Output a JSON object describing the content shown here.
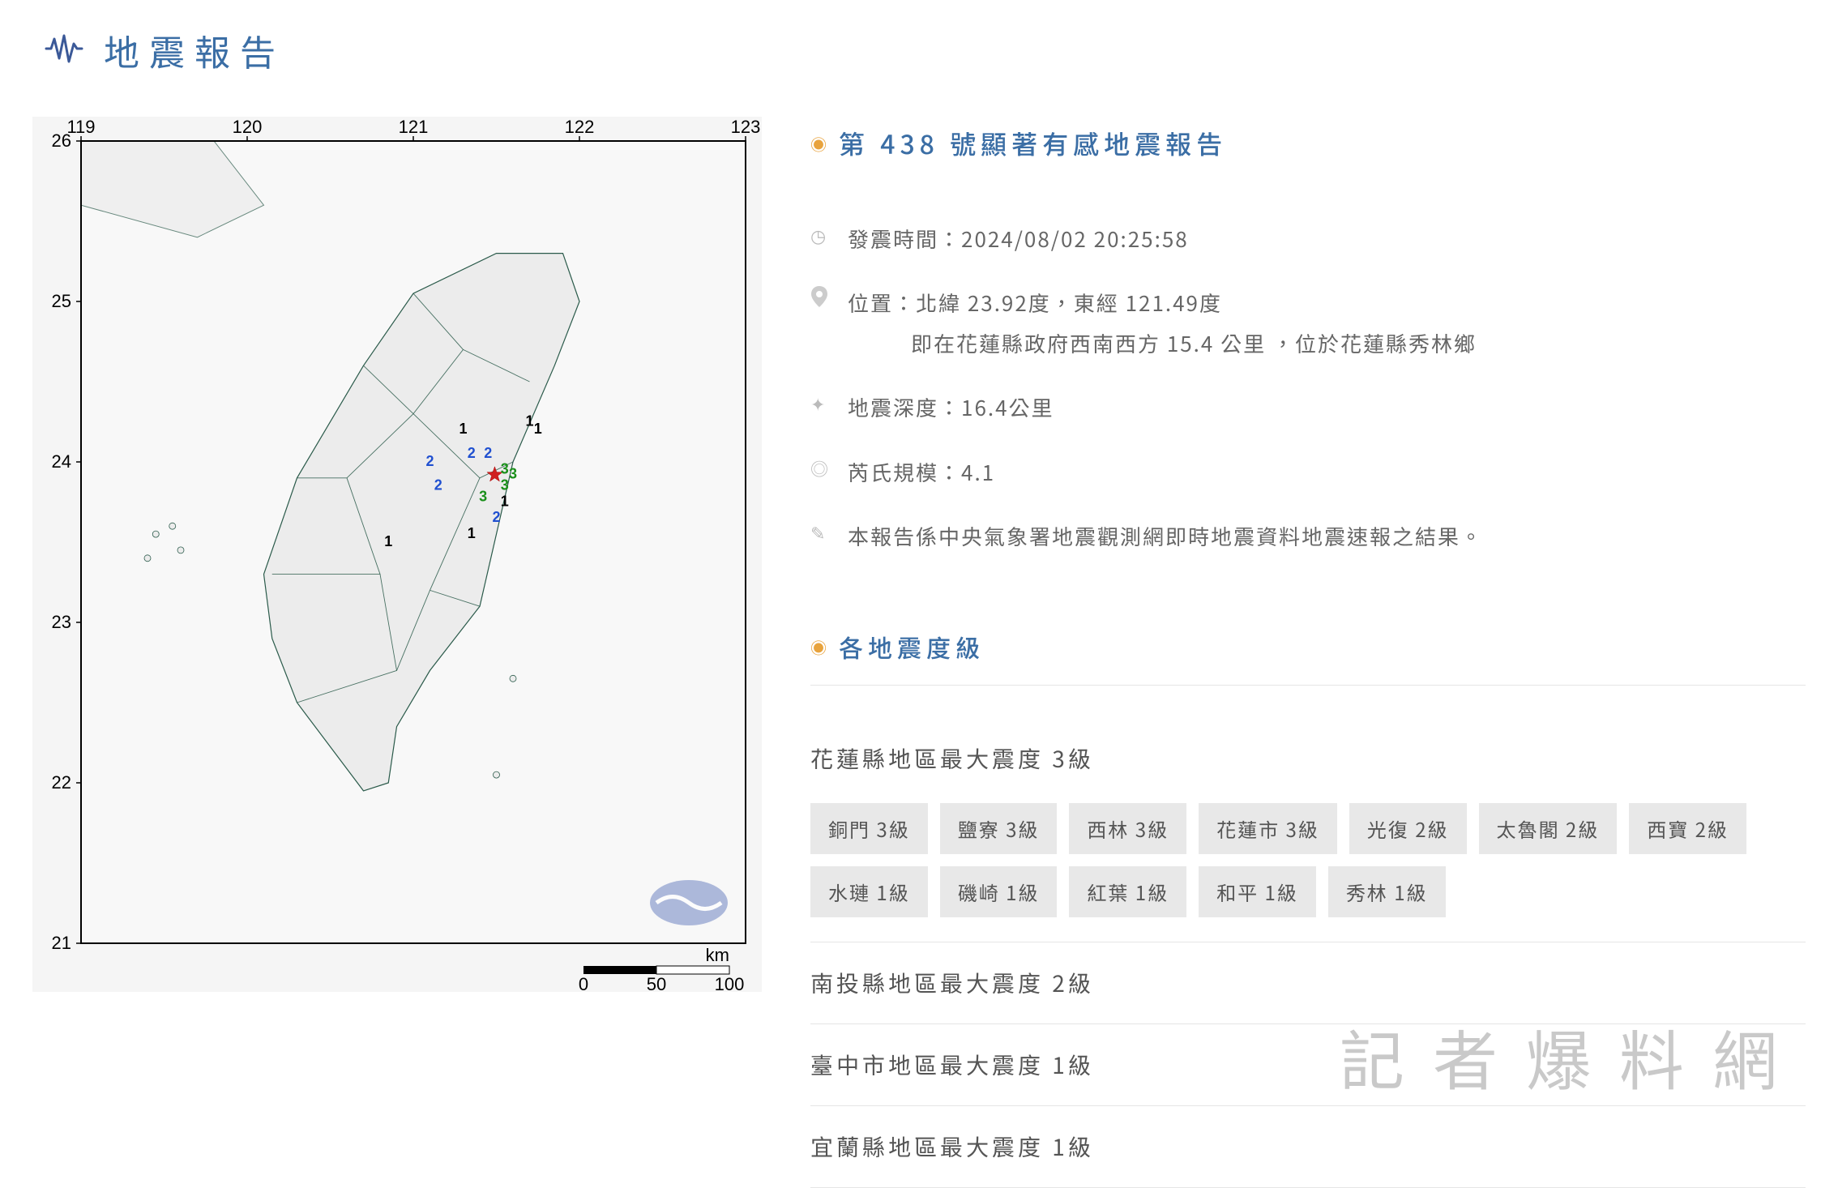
{
  "page": {
    "title": "地震報告"
  },
  "report": {
    "title": "第 438 號顯著有感地震報告",
    "time_label": "發震時間：",
    "time_value": "2024/08/02 20:25:58",
    "location_label": "位置：",
    "location_line1": "北緯 23.92度，東經 121.49度",
    "location_line2": "即在花蓮縣政府西南西方 15.4 公里 ，位於花蓮縣秀林鄉",
    "depth_label": "地震深度：",
    "depth_value": "16.4公里",
    "magnitude_label": "芮氏規模：",
    "magnitude_value": "4.1",
    "note": "本報告係中央氣象署地震觀測網即時地震資料地震速報之結果。"
  },
  "intensity_section": {
    "title": "各地震度級"
  },
  "regions": [
    {
      "title": "花蓮縣地區最大震度 3級",
      "badges": [
        "銅門 3級",
        "鹽寮 3級",
        "西林 3級",
        "花蓮市 3級",
        "光復 2級",
        "太魯閣 2級",
        "西寶 2級",
        "水璉 1級",
        "磯崎 1級",
        "紅葉 1級",
        "和平 1級",
        "秀林 1級"
      ]
    },
    {
      "title": "南投縣地區最大震度 2級",
      "badges": []
    },
    {
      "title": "臺中市地區最大震度 1級",
      "badges": []
    },
    {
      "title": "宜蘭縣地區最大震度 1級",
      "badges": []
    }
  ],
  "map": {
    "lon_range": [
      119,
      123
    ],
    "lat_range": [
      21,
      26
    ],
    "lon_ticks": [
      119,
      120,
      121,
      122,
      123
    ],
    "lat_ticks": [
      21,
      22,
      23,
      24,
      25,
      26
    ],
    "scale_label": "km",
    "scale_values": [
      "0",
      "50",
      "100"
    ],
    "epicenter": {
      "lon": 121.49,
      "lat": 23.92
    },
    "markers": [
      {
        "lon": 121.55,
        "lat": 23.95,
        "val": "3",
        "color": "#1a8f1a"
      },
      {
        "lon": 121.55,
        "lat": 23.85,
        "val": "3",
        "color": "#1a8f1a"
      },
      {
        "lon": 121.42,
        "lat": 23.78,
        "val": "3",
        "color": "#1a8f1a"
      },
      {
        "lon": 121.6,
        "lat": 23.92,
        "val": "3",
        "color": "#1a8f1a"
      },
      {
        "lon": 121.35,
        "lat": 24.05,
        "val": "2",
        "color": "#2050d0"
      },
      {
        "lon": 121.45,
        "lat": 24.05,
        "val": "2",
        "color": "#2050d0"
      },
      {
        "lon": 121.1,
        "lat": 24.0,
        "val": "2",
        "color": "#2050d0"
      },
      {
        "lon": 121.15,
        "lat": 23.85,
        "val": "2",
        "color": "#2050d0"
      },
      {
        "lon": 121.5,
        "lat": 23.65,
        "val": "2",
        "color": "#2050d0"
      },
      {
        "lon": 121.7,
        "lat": 24.25,
        "val": "1",
        "color": "#000000"
      },
      {
        "lon": 121.75,
        "lat": 24.2,
        "val": "1",
        "color": "#000000"
      },
      {
        "lon": 121.3,
        "lat": 24.2,
        "val": "1",
        "color": "#000000"
      },
      {
        "lon": 121.55,
        "lat": 23.75,
        "val": "1",
        "color": "#000000"
      },
      {
        "lon": 121.35,
        "lat": 23.55,
        "val": "1",
        "color": "#000000"
      },
      {
        "lon": 120.85,
        "lat": 23.5,
        "val": "1",
        "color": "#000000"
      }
    ],
    "colors": {
      "border": "#000000",
      "coast": "#2a5a4a",
      "terrain_bg": "#ececec",
      "sea_bg": "#f8f8f8",
      "logo": "#7a8fc7"
    }
  },
  "watermark": "記者爆料網"
}
